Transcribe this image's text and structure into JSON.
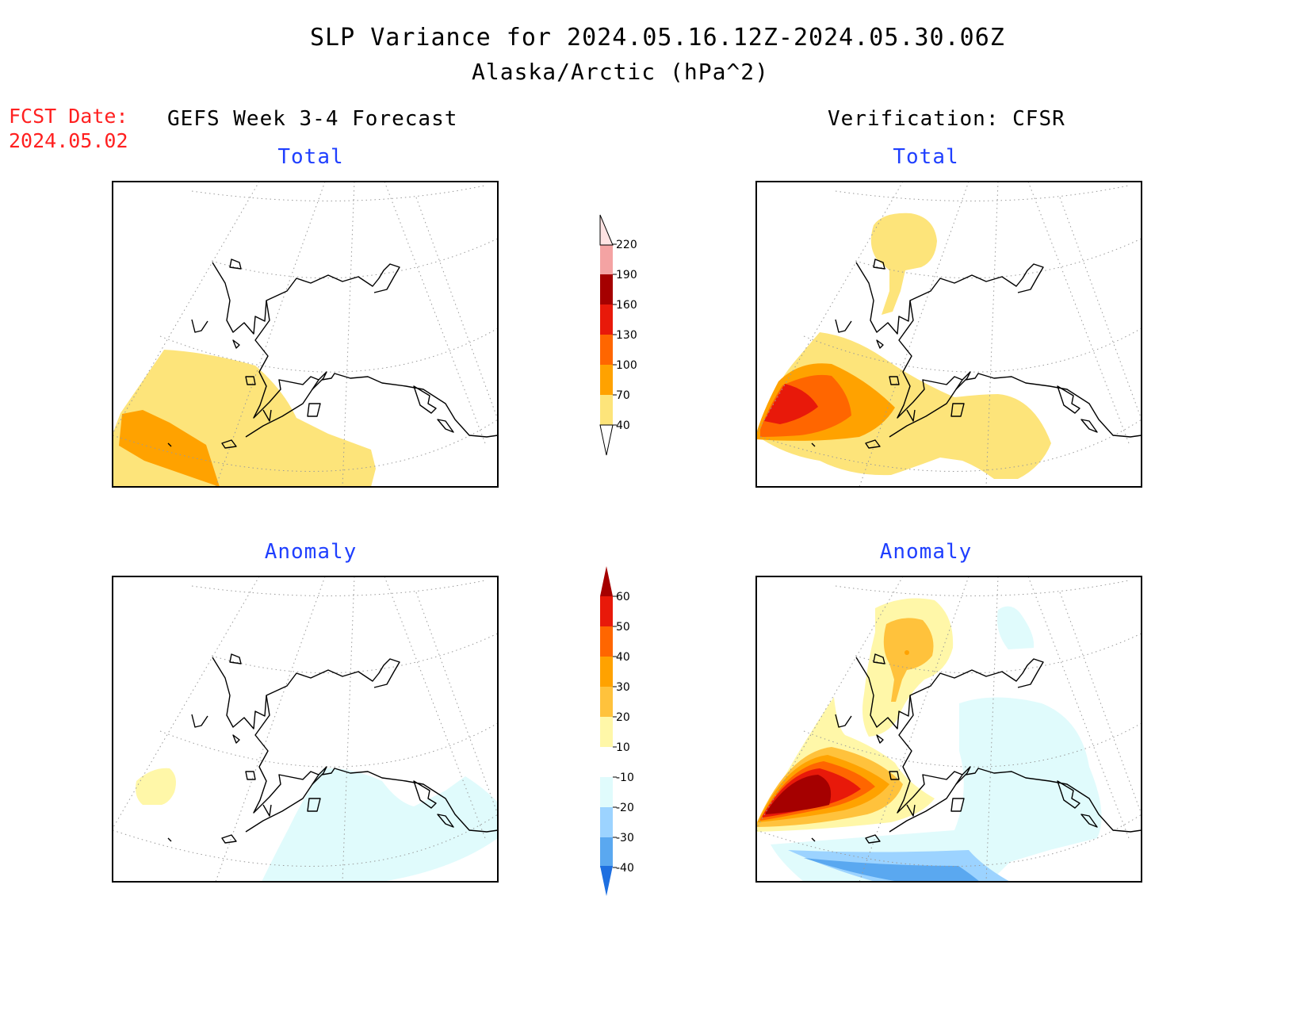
{
  "title": "SLP Variance for 2024.05.16.12Z-2024.05.30.06Z",
  "subtitle": "Alaska/Arctic (hPa^2)",
  "fcst_date": {
    "label": "FCST Date:",
    "value": "2024.05.02"
  },
  "left_header": "GEFS Week 3-4 Forecast",
  "right_header": "Verification: CFSR",
  "panels": [
    {
      "label": "Total"
    },
    {
      "label": "Total"
    },
    {
      "label": "Anomaly"
    },
    {
      "label": "Anomaly"
    }
  ],
  "colorbars": [
    {
      "levels": [
        "40",
        "70",
        "100",
        "130",
        "160",
        "190",
        "220"
      ],
      "colors": [
        "#fde47a",
        "#ffa200",
        "#ff6600",
        "#e8190a",
        "#a50000",
        "#f4a3a3",
        "#ffe3e3"
      ]
    },
    {
      "levels": [
        "60",
        "50",
        "40",
        "30",
        "20",
        "10",
        "-10",
        "-20",
        "-30",
        "-40"
      ],
      "colors": [
        "#a50000",
        "#e8190a",
        "#ff6600",
        "#ffa200",
        "#ffc23c",
        "#fff7a8",
        "#ffffff",
        "#e0fbfc",
        "#9cd3ff",
        "#5aa8f0",
        "#1e6fe0"
      ]
    }
  ],
  "colors": {
    "land_outline": "#000000",
    "grid": "#9a9a9a",
    "fcst_date": "#ff2020",
    "panel_label": "#1f3fff"
  }
}
